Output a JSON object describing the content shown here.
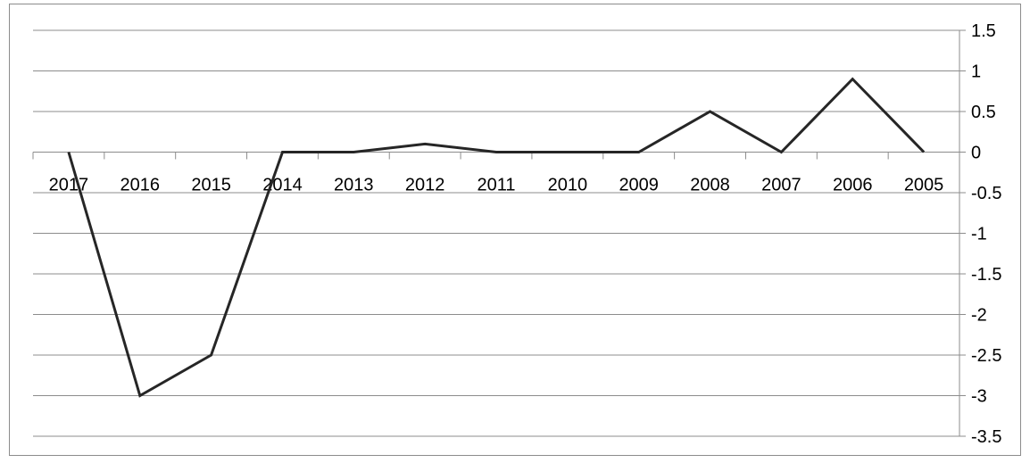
{
  "chart_data": {
    "type": "line",
    "categories": [
      "2017",
      "2016",
      "2015",
      "2014",
      "2013",
      "2012",
      "2011",
      "2010",
      "2009",
      "2008",
      "2007",
      "2006",
      "2005"
    ],
    "series": [
      {
        "values": [
          0,
          -3,
          -2.5,
          0,
          0,
          0.1,
          0,
          0,
          0,
          0.5,
          0,
          0.9,
          0
        ]
      }
    ],
    "ylim": [
      -3.5,
      1.5
    ],
    "yticks": [
      1.5,
      1,
      0.5,
      0,
      -0.5,
      -1,
      -1.5,
      -2,
      -2.5,
      -3,
      -3.5
    ],
    "ytick_labels": [
      "1.5",
      "1",
      "0.5",
      "0",
      "-0.5",
      "-1",
      "-1.5",
      "-2",
      "-2.5",
      "-3",
      "-3.5"
    ],
    "y_axis_side": "right",
    "x_axis_crosses_at": 0,
    "grid": true,
    "legend": "none",
    "line_color": "#262626",
    "grid_color": "#8c8c8c"
  }
}
